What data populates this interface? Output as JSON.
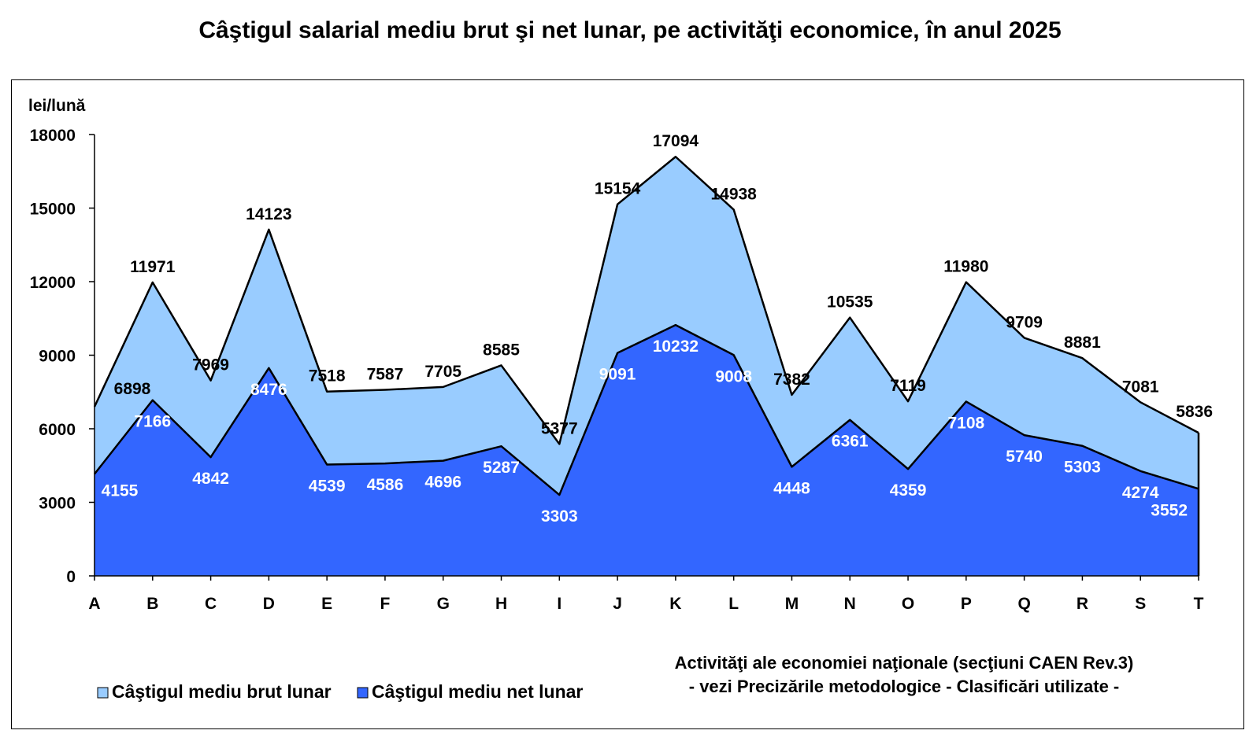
{
  "title": "Câştigul salarial mediu brut şi net lunar, pe activităţi economice, în anul 2025",
  "chart_data": {
    "type": "area",
    "categories": [
      "A",
      "B",
      "C",
      "D",
      "E",
      "F",
      "G",
      "H",
      "I",
      "J",
      "K",
      "L",
      "M",
      "N",
      "O",
      "P",
      "Q",
      "R",
      "S",
      "T"
    ],
    "series": [
      {
        "name": "Câştigul mediu brut lunar",
        "color": "#99ccff",
        "values": [
          6898,
          11971,
          7969,
          14123,
          7518,
          7587,
          7705,
          8585,
          5377,
          15154,
          17094,
          14938,
          7382,
          10535,
          7119,
          11980,
          9709,
          8881,
          7081,
          5836
        ]
      },
      {
        "name": "Câştigul mediu net lunar",
        "color": "#3366ff",
        "values": [
          4155,
          7166,
          4842,
          8476,
          4539,
          4586,
          4696,
          5287,
          3303,
          9091,
          10232,
          9008,
          4448,
          6361,
          4359,
          7108,
          5740,
          5303,
          4274,
          3552
        ]
      }
    ],
    "ylabel": "lei/lună",
    "xlabel": "Activităţi ale economiei naţionale (secţiuni CAEN Rev.3)",
    "xlabel_note": "- vezi Precizările metodologice - Clasificări utilizate -",
    "ylim": [
      0,
      18000
    ],
    "yticks": [
      "0",
      "3000",
      "6000",
      "9000",
      "12000",
      "15000",
      "18000"
    ],
    "grid": false,
    "legend_position": "bottom-left"
  }
}
